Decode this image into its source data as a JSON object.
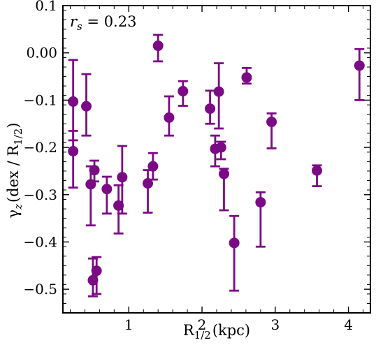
{
  "chart_data": {
    "type": "scatter",
    "xlabel": "R",
    "xlabel_sub": "1/2",
    "xlabel_unit": "(kpc)",
    "ylabel": "γ",
    "ylabel_sub": "z",
    "ylabel_unit_pre": "(dex / R",
    "ylabel_unit_sub": "1/2",
    "ylabel_unit_post": ")",
    "annotation": {
      "var": "r",
      "sub": "s",
      "text": " = 0.23"
    },
    "xlim": [
      0.1,
      4.3
    ],
    "ylim": [
      -0.55,
      0.1
    ],
    "xticks": [
      1,
      2,
      3,
      4
    ],
    "xtick_labels": [
      "1",
      "2",
      "3",
      "4"
    ],
    "yticks": [
      0.1,
      0.0,
      -0.1,
      -0.2,
      -0.3,
      -0.4,
      -0.5
    ],
    "ytick_labels": [
      "0.1",
      "0.00",
      "−0.1",
      "−0.2",
      "−0.3",
      "−0.4",
      "−0.5"
    ],
    "grid": false,
    "marker_color": "#7b0a85",
    "points": [
      {
        "x": 0.24,
        "y": -0.103,
        "lo": -0.185,
        "hi": -0.015
      },
      {
        "x": 0.24,
        "y": -0.208,
        "lo": -0.285,
        "hi": -0.165
      },
      {
        "x": 0.42,
        "y": -0.113,
        "lo": -0.175,
        "hi": -0.045
      },
      {
        "x": 0.48,
        "y": -0.278,
        "lo": -0.365,
        "hi": -0.24
      },
      {
        "x": 0.51,
        "y": -0.481,
        "lo": -0.515,
        "hi": -0.435
      },
      {
        "x": 0.53,
        "y": -0.248,
        "lo": -0.272,
        "hi": -0.228
      },
      {
        "x": 0.56,
        "y": -0.461,
        "lo": -0.51,
        "hi": -0.432
      },
      {
        "x": 0.7,
        "y": -0.288,
        "lo": -0.34,
        "hi": -0.262
      },
      {
        "x": 0.86,
        "y": -0.323,
        "lo": -0.382,
        "hi": -0.28
      },
      {
        "x": 0.91,
        "y": -0.263,
        "lo": -0.34,
        "hi": -0.197
      },
      {
        "x": 1.26,
        "y": -0.276,
        "lo": -0.338,
        "hi": -0.248
      },
      {
        "x": 1.33,
        "y": -0.24,
        "lo": -0.268,
        "hi": -0.212
      },
      {
        "x": 1.4,
        "y": 0.015,
        "lo": -0.018,
        "hi": 0.038
      },
      {
        "x": 1.55,
        "y": -0.137,
        "lo": -0.175,
        "hi": -0.092
      },
      {
        "x": 1.74,
        "y": -0.081,
        "lo": -0.112,
        "hi": -0.06
      },
      {
        "x": 2.11,
        "y": -0.118,
        "lo": -0.15,
        "hi": -0.08
      },
      {
        "x": 2.18,
        "y": -0.203,
        "lo": -0.24,
        "hi": -0.175
      },
      {
        "x": 2.23,
        "y": -0.082,
        "lo": -0.16,
        "hi": -0.022
      },
      {
        "x": 2.26,
        "y": -0.2,
        "lo": -0.225,
        "hi": -0.188
      },
      {
        "x": 2.3,
        "y": -0.256,
        "lo": -0.333,
        "hi": -0.245
      },
      {
        "x": 2.44,
        "y": -0.402,
        "lo": -0.503,
        "hi": -0.345
      },
      {
        "x": 2.61,
        "y": -0.052,
        "lo": -0.065,
        "hi": -0.032
      },
      {
        "x": 2.8,
        "y": -0.316,
        "lo": -0.41,
        "hi": -0.295
      },
      {
        "x": 2.95,
        "y": -0.146,
        "lo": -0.202,
        "hi": -0.128
      },
      {
        "x": 3.57,
        "y": -0.249,
        "lo": -0.282,
        "hi": -0.238
      },
      {
        "x": 4.15,
        "y": -0.027,
        "lo": -0.1,
        "hi": 0.008
      }
    ]
  }
}
